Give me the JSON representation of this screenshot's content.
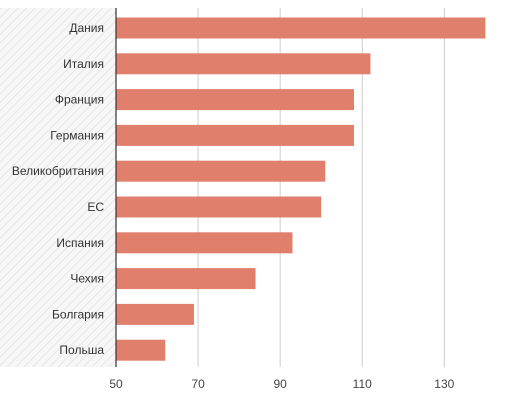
{
  "chart_data": {
    "type": "bar",
    "orientation": "horizontal",
    "categories": [
      "Дания",
      "Италия",
      "Франция",
      "Германия",
      "Великобритания",
      "ЕС",
      "Испания",
      "Чехия",
      "Болгария",
      "Польша"
    ],
    "values": [
      140,
      112,
      108,
      108,
      101,
      100,
      93,
      84,
      69,
      62
    ],
    "xlim": [
      50,
      140
    ],
    "xticks": [
      50,
      70,
      90,
      110,
      130
    ],
    "grid": true,
    "title": "",
    "xlabel": "",
    "ylabel": "",
    "colors": {
      "bar": "#e07f6b",
      "grid": "#cccccc",
      "axis": "#333333",
      "label_band": "#f3f3f3"
    }
  }
}
